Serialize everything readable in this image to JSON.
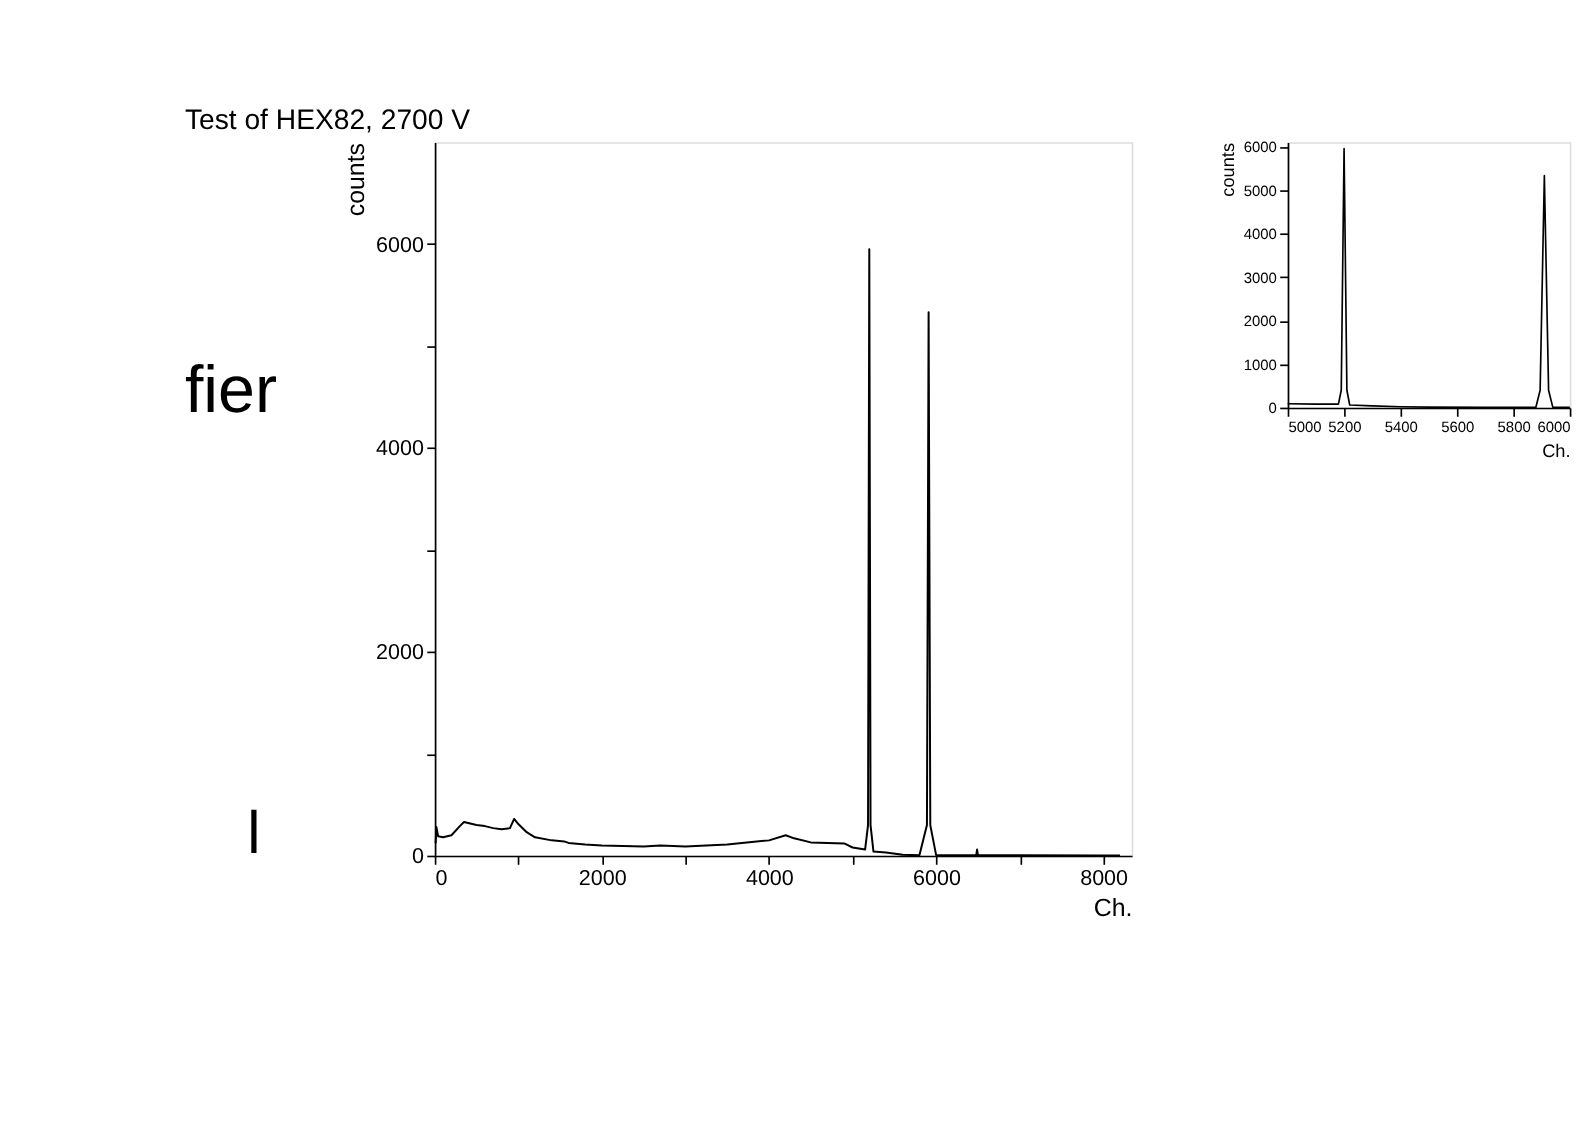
{
  "chart_data": [
    {
      "type": "line",
      "title": "Test of HEX82, 2700 V",
      "xlabel": "Ch.",
      "ylabel": "counts",
      "grid": false,
      "marker": "none",
      "line_style": "solid",
      "annotations": [
        "fier",
        "l"
      ],
      "x": [
        10,
        20,
        40,
        100,
        200,
        300,
        350,
        400,
        500,
        600,
        700,
        800,
        900,
        950,
        1000,
        1100,
        1200,
        1400,
        1550,
        1600,
        1800,
        2000,
        2500,
        2700,
        3000,
        3500,
        4000,
        4200,
        4300,
        4500,
        4900,
        5000,
        5150,
        5185,
        5200,
        5215,
        5250,
        5400,
        5600,
        5800,
        5890,
        5910,
        5930,
        6000,
        6480,
        6490,
        6500,
        7000,
        8000,
        8200
      ],
      "series": [
        {
          "color": "#000000",
          "values": [
            120,
            280,
            190,
            180,
            200,
            290,
            330,
            320,
            300,
            290,
            270,
            260,
            270,
            360,
            310,
            230,
            180,
            150,
            140,
            125,
            110,
            100,
            90,
            100,
            90,
            110,
            150,
            200,
            170,
            130,
            120,
            80,
            60,
            300,
            5950,
            300,
            40,
            30,
            10,
            5,
            300,
            5330,
            300,
            5,
            5,
            60,
            5,
            3,
            2,
            2
          ]
        }
      ],
      "xlim": [
        0,
        8340
      ],
      "ylim": [
        0,
        7000
      ],
      "xticks": [
        0,
        {
          "value": 1000,
          "label": null
        },
        2000,
        {
          "value": 3000,
          "label": null
        },
        4000,
        {
          "value": 5000,
          "label": null
        },
        6000,
        {
          "value": 7000,
          "label": null
        },
        8000
      ],
      "yticks": [
        0,
        {
          "value": 1000,
          "label": null
        },
        2000,
        {
          "value": 3000,
          "label": null
        },
        4000,
        {
          "value": 5000,
          "label": null
        },
        6000
      ]
    },
    {
      "type": "line",
      "xlabel": "Ch.",
      "ylabel": "counts",
      "grid": false,
      "marker": "none",
      "line_style": "solid",
      "x": [
        5000,
        5100,
        5180,
        5190,
        5200,
        5210,
        5220,
        5300,
        5400,
        5500,
        5700,
        5880,
        5895,
        5910,
        5925,
        5940,
        6000
      ],
      "series": [
        {
          "color": "#000000",
          "values": [
            90,
            80,
            80,
            400,
            5950,
            400,
            60,
            40,
            20,
            10,
            5,
            10,
            400,
            5330,
            400,
            5,
            5
          ]
        }
      ],
      "xlim": [
        5000,
        6000
      ],
      "ylim": [
        0,
        6100
      ],
      "xticks": [
        5000,
        5200,
        5400,
        5600,
        5800,
        6000
      ],
      "yticks": [
        0,
        1000,
        2000,
        3000,
        4000,
        5000,
        6000
      ]
    }
  ]
}
